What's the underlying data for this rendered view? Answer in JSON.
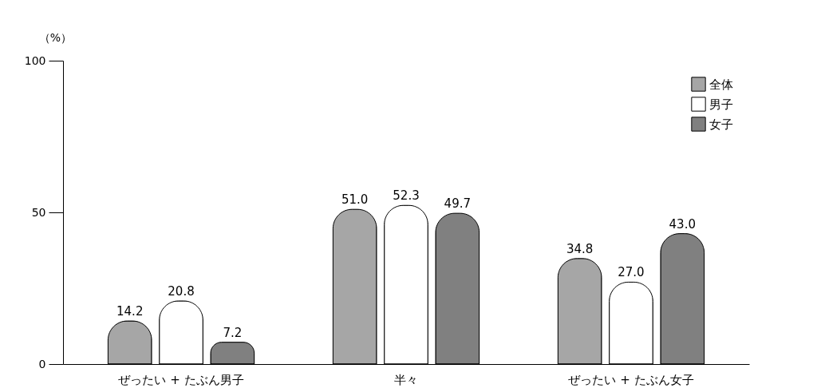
{
  "chart_data": {
    "type": "bar",
    "ylabel": "（%）",
    "categories": [
      "ぜったい + たぶん男子",
      "半々",
      "ぜったい + たぶん女子"
    ],
    "series": [
      {
        "name": "全体",
        "color": "#a6a6a6",
        "values": [
          14.2,
          51.0,
          34.8
        ],
        "value_labels": [
          "14.2",
          "51.0",
          "34.8"
        ]
      },
      {
        "name": "男子",
        "color": "#ffffff",
        "values": [
          20.8,
          52.3,
          27.0
        ],
        "value_labels": [
          "20.8",
          "52.3",
          "27.0"
        ]
      },
      {
        "name": "女子",
        "color": "#808080",
        "values": [
          7.2,
          49.7,
          43.0
        ],
        "value_labels": [
          "7.2",
          "49.7",
          "43.0"
        ]
      }
    ],
    "ylim": [
      0,
      100
    ],
    "yticks": [
      0,
      50,
      100
    ],
    "grid": false,
    "legend": "top right"
  }
}
